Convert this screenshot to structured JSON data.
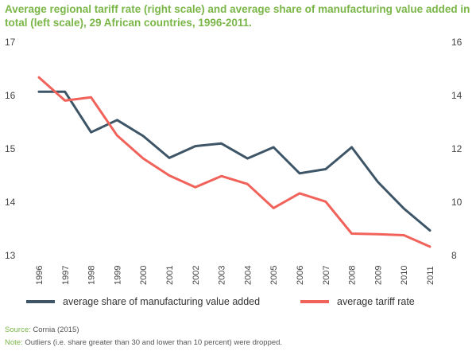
{
  "title": "Average regional tariff rate (right scale) and average share of manufacturing value added in total (left scale), 29 African countries, 1996-2011.",
  "source_label": "Source:",
  "source_text": "Cornia (2015)",
  "note_label": "Note:",
  "note_text": "Outliers (i.e. share greater than 30 and lower than 10 percent) were dropped.",
  "colors": {
    "title": "#7ab648",
    "manufacturing": "#3d5566",
    "tariff": "#f0625a"
  },
  "chart_data": {
    "type": "line",
    "title": "Average regional tariff rate (right scale) and average share of manufacturing value added in total (left scale), 29 African countries, 1996-2011.",
    "categories": [
      "1996",
      "1997",
      "1998",
      "1999",
      "2000",
      "2001",
      "2002",
      "2003",
      "2004",
      "2005",
      "2006",
      "2007",
      "2008",
      "2009",
      "2010",
      "2011"
    ],
    "left_axis": {
      "min": 13,
      "max": 17,
      "ticks": [
        "13",
        "14",
        "15",
        "16",
        "17"
      ]
    },
    "right_axis": {
      "min": 8,
      "max": 16,
      "ticks": [
        "8",
        "10",
        "12",
        "14",
        "16"
      ]
    },
    "series": [
      {
        "name": "average share of manufacturing value added",
        "axis": "left",
        "color": "#3d5566",
        "values": [
          16.07,
          16.07,
          15.31,
          15.54,
          15.24,
          14.83,
          15.05,
          15.1,
          14.82,
          15.03,
          14.54,
          14.62,
          15.03,
          14.38,
          13.88,
          13.47
        ]
      },
      {
        "name": "average tariff rate",
        "axis": "right",
        "color": "#f0625a",
        "values": [
          14.68,
          13.81,
          13.93,
          12.5,
          11.64,
          11.0,
          10.56,
          10.98,
          10.68,
          9.78,
          10.33,
          10.02,
          8.82,
          8.8,
          8.76,
          8.33
        ]
      }
    ],
    "grid": false,
    "legend_position": "bottom"
  }
}
